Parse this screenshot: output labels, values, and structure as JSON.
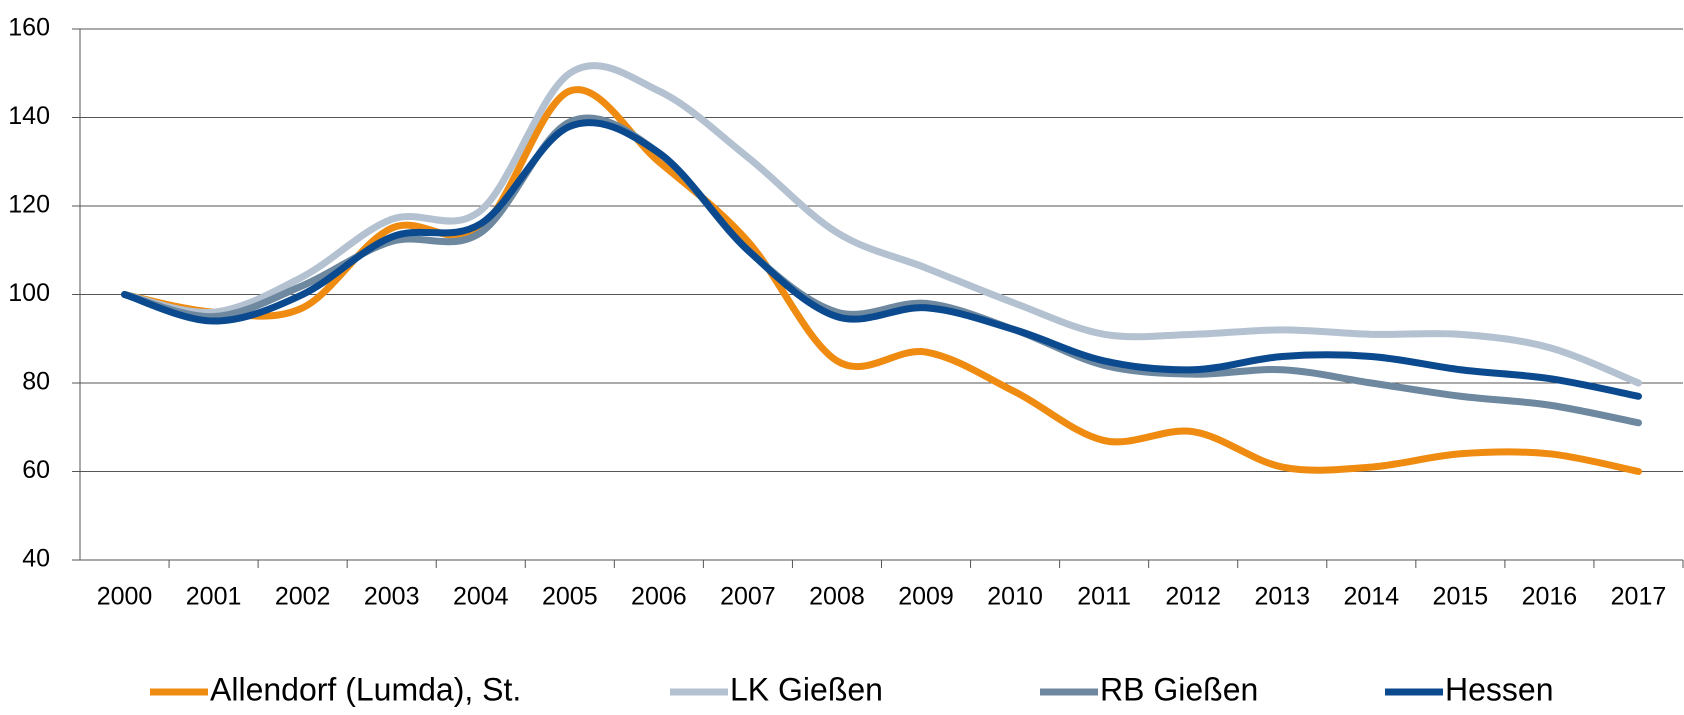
{
  "chart_data": {
    "type": "line",
    "categories": [
      "2000",
      "2001",
      "2002",
      "2003",
      "2004",
      "2005",
      "2006",
      "2007",
      "2008",
      "2009",
      "2010",
      "2011",
      "2012",
      "2013",
      "2014",
      "2015",
      "2016",
      "2017"
    ],
    "series": [
      {
        "name": "Allendorf (Lumda), St.",
        "color": "#ee8b10",
        "values": [
          100,
          96,
          97,
          115,
          115,
          146,
          130,
          112,
          85,
          87,
          78,
          67,
          69,
          61,
          61,
          64,
          64,
          60
        ]
      },
      {
        "name": "LK Gießen",
        "color": "#b3c1d1",
        "values": [
          100,
          96,
          104,
          117,
          119,
          150,
          146,
          131,
          114,
          106,
          98,
          91,
          91,
          92,
          91,
          91,
          88,
          80
        ]
      },
      {
        "name": "RB Gießen",
        "color": "#6d889f",
        "values": [
          100,
          95,
          102,
          112,
          114,
          139,
          132,
          110,
          96,
          98,
          92,
          84,
          82,
          83,
          80,
          77,
          75,
          71
        ]
      },
      {
        "name": "Hessen",
        "color": "#0b4a8e",
        "values": [
          100,
          94,
          100,
          113,
          116,
          138,
          132,
          110,
          95,
          97,
          92,
          85,
          83,
          86,
          86,
          83,
          81,
          77
        ]
      }
    ],
    "ylim": [
      40,
      160
    ],
    "yticks": [
      40,
      60,
      80,
      100,
      120,
      140,
      160
    ],
    "grid": true,
    "legend": "bottom"
  }
}
